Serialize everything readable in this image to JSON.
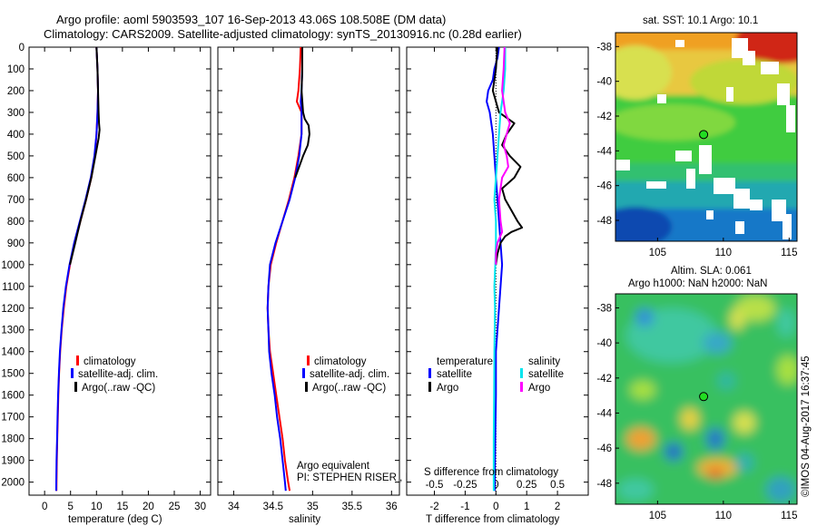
{
  "header": {
    "title_line1": "Argo profile: aoml 5903593_107 16-Sep-2013 43.06S 108.508E (DM data)",
    "title_line2": "Climatology: CARS2009. Satellite-adjusted climatology: synTS_20130916.nc (0.28d earlier)"
  },
  "watermark": "©IMOS 04-Aug-2017 16:37:45",
  "colors": {
    "climatology": "#ff0000",
    "satellite": "#0000ff",
    "argo": "#000000",
    "sat_salinity": "#00e5ee",
    "argo_salinity": "#ff00ff"
  },
  "depth_axis": {
    "ticks": [
      "0",
      "100",
      "200",
      "300",
      "400",
      "500",
      "600",
      "700",
      "800",
      "900",
      "1000",
      "1100",
      "1200",
      "1300",
      "1400",
      "1500",
      "1600",
      "1700",
      "1800",
      "1900",
      "2000"
    ],
    "ylim": [
      0,
      2060
    ]
  },
  "chart_data": [
    {
      "id": "temperature",
      "type": "line",
      "xlabel": "temperature (deg C)",
      "xlim": [
        -3,
        32
      ],
      "xticks": [
        "0",
        "5",
        "10",
        "15",
        "20",
        "25",
        "30"
      ],
      "xtick_values": [
        0,
        5,
        10,
        15,
        20,
        25,
        30
      ],
      "legend": [
        "climatology",
        "satellite-adj. clim.",
        "Argo(..raw -QC)"
      ],
      "series": [
        {
          "name": "climatology",
          "color": "#ff0000",
          "depth": [
            0,
            100,
            200,
            300,
            400,
            500,
            600,
            700,
            800,
            900,
            1000,
            1100,
            1200,
            1300,
            1400,
            1500,
            1600,
            1700,
            1800,
            1900,
            2000,
            2040
          ],
          "values": [
            10.0,
            10.2,
            10.3,
            10.2,
            10.0,
            9.7,
            9.0,
            8.0,
            6.9,
            5.8,
            4.9,
            4.2,
            3.7,
            3.3,
            3.0,
            2.8,
            2.65,
            2.55,
            2.45,
            2.35,
            2.3,
            2.28
          ]
        },
        {
          "name": "satellite-adj. clim.",
          "color": "#0000ff",
          "depth": [
            0,
            100,
            200,
            300,
            400,
            500,
            600,
            700,
            800,
            900,
            1000,
            1100,
            1200,
            1300,
            1400,
            1500,
            1600,
            1700,
            1800,
            1900,
            2000,
            2040
          ],
          "values": [
            10.0,
            10.2,
            10.3,
            10.2,
            10.0,
            9.6,
            8.9,
            7.9,
            6.8,
            5.7,
            4.8,
            4.1,
            3.6,
            3.25,
            2.95,
            2.75,
            2.6,
            2.5,
            2.4,
            2.3,
            2.25,
            2.24
          ]
        },
        {
          "name": "Argo",
          "color": "#000000",
          "depth": [
            0,
            100,
            200,
            300,
            350,
            380,
            420,
            500,
            600,
            700,
            800,
            850,
            900,
            950,
            1000
          ],
          "values": [
            10.0,
            10.2,
            10.3,
            10.4,
            10.5,
            10.6,
            10.4,
            9.8,
            9.0,
            8.0,
            6.9,
            6.4,
            5.9,
            5.4,
            4.9
          ]
        }
      ],
      "annotations": []
    },
    {
      "id": "salinity",
      "type": "line",
      "xlabel": "salinity",
      "xlim": [
        33.8,
        36.1
      ],
      "xticks": [
        "34",
        "34.5",
        "35",
        "35.5",
        "36"
      ],
      "xtick_values": [
        34,
        34.5,
        35,
        35.5,
        36
      ],
      "legend": [
        "climatology",
        "satellite-adj. clim.",
        "Argo(..raw -QC)"
      ],
      "series": [
        {
          "name": "climatology",
          "color": "#ff0000",
          "depth": [
            0,
            100,
            200,
            250,
            300,
            400,
            500,
            600,
            700,
            800,
            900,
            1000,
            1100,
            1200,
            1300,
            1400,
            1500,
            1600,
            1700,
            1800,
            1900,
            2000,
            2040
          ],
          "values": [
            34.85,
            34.84,
            34.82,
            34.8,
            34.86,
            34.86,
            34.82,
            34.77,
            34.7,
            34.62,
            34.54,
            34.47,
            34.44,
            34.43,
            34.44,
            34.46,
            34.5,
            34.54,
            34.58,
            34.62,
            34.65,
            34.69,
            34.71
          ]
        },
        {
          "name": "satellite-adj. clim.",
          "color": "#0000ff",
          "depth": [
            0,
            100,
            200,
            250,
            300,
            400,
            500,
            600,
            700,
            800,
            900,
            1000,
            1100,
            1200,
            1300,
            1400,
            1500,
            1600,
            1700,
            1800,
            1900,
            2000,
            2040
          ],
          "values": [
            34.87,
            34.87,
            34.86,
            34.85,
            34.86,
            34.86,
            34.83,
            34.78,
            34.71,
            34.62,
            34.53,
            34.46,
            34.44,
            34.43,
            34.44,
            34.45,
            34.48,
            34.52,
            34.55,
            34.59,
            34.62,
            34.65,
            34.66
          ]
        },
        {
          "name": "Argo",
          "color": "#000000",
          "depth": [
            0,
            100,
            200,
            300,
            330,
            360,
            400,
            450,
            500,
            560,
            600
          ],
          "values": [
            34.87,
            34.87,
            34.86,
            34.88,
            34.9,
            34.95,
            34.96,
            34.94,
            34.88,
            34.82,
            34.78
          ]
        }
      ],
      "annotations": [
        "Argo equivalent",
        "PI: STEPHEN RISER , KENNETH JOHNSON"
      ]
    },
    {
      "id": "difference",
      "type": "line",
      "xlabel": "T difference from climatology",
      "xlabel_top": "S difference from climatology",
      "xlim": [
        -2.9,
        3.0
      ],
      "xticks": [
        "-2",
        "-1",
        "0",
        "1",
        "2"
      ],
      "xtick_values": [
        -2,
        -1,
        0,
        1,
        2
      ],
      "xticks_top": [
        "-0.5",
        "-0.25",
        "0",
        "0.25",
        "0.5"
      ],
      "xtick_top_values": [
        -0.5,
        -0.25,
        0,
        0.25,
        0.5
      ],
      "legend": {
        "temperature": "temperature",
        "salinity": "salinity",
        "satellite": "satellite",
        "argo": "Argo"
      },
      "series": [
        {
          "name": "T satellite",
          "color": "#0000ff",
          "depth": [
            0,
            50,
            100,
            150,
            200,
            250,
            300,
            400,
            500,
            600,
            700,
            800,
            900,
            1000,
            1100,
            1200,
            1300,
            1400,
            1500,
            1600,
            1800,
            2040
          ],
          "values": [
            0.1,
            0.05,
            -0.05,
            -0.1,
            -0.25,
            -0.3,
            -0.2,
            -0.1,
            -0.05,
            0.0,
            0.05,
            0.1,
            0.15,
            0.2,
            0.15,
            0.1,
            0.05,
            0.0,
            0.0,
            0.0,
            -0.02,
            -0.04
          ]
        },
        {
          "name": "T Argo",
          "color": "#000000",
          "depth": [
            0,
            100,
            200,
            300,
            350,
            400,
            450,
            500,
            550,
            600,
            650,
            700,
            750,
            800,
            830,
            850,
            870,
            900,
            950,
            1000
          ],
          "values": [
            0.05,
            0.0,
            -0.1,
            0.1,
            0.6,
            0.35,
            0.2,
            0.45,
            0.8,
            0.6,
            0.2,
            0.3,
            0.5,
            0.7,
            0.85,
            0.5,
            0.3,
            0.15,
            0.05,
            0.0
          ]
        },
        {
          "name": "S satellite",
          "color": "#00e5ee",
          "depth": [
            0,
            100,
            200,
            300,
            400,
            500,
            600,
            700,
            800,
            900,
            1000,
            1100,
            1200,
            1400,
            1600,
            1800,
            2040
          ],
          "values": [
            0.3,
            0.3,
            0.25,
            0.15,
            0.1,
            0.05,
            0.0,
            -0.05,
            0.0,
            0.0,
            -0.02,
            -0.05,
            -0.03,
            -0.05,
            -0.06,
            -0.07,
            -0.07
          ]
        },
        {
          "name": "S Argo",
          "color": "#ff00ff",
          "depth": [
            0,
            100,
            200,
            300,
            350,
            400,
            450,
            500,
            550,
            600,
            700,
            800,
            850,
            900,
            950,
            1000
          ],
          "values": [
            0.28,
            0.25,
            0.2,
            0.3,
            0.45,
            0.35,
            0.25,
            0.35,
            0.4,
            0.2,
            0.1,
            0.15,
            0.2,
            0.05,
            0.0,
            0.0
          ]
        }
      ],
      "annotations": []
    },
    {
      "id": "sst_map",
      "type": "heatmap",
      "title": "sat. SST: 10.1  Argo: 10.1",
      "xticks": [
        "105",
        "110",
        "115"
      ],
      "xtick_values": [
        105,
        110,
        115
      ],
      "yticks": [
        "-38",
        "-40",
        "-42",
        "-44",
        "-46",
        "-48"
      ],
      "ytick_values": [
        -38,
        -40,
        -42,
        -44,
        -46,
        -48
      ],
      "xlim": [
        101.8,
        115.6
      ],
      "ylim": [
        -49.2,
        -37.2
      ],
      "float_position": {
        "lon": 108.5,
        "lat": -43.06
      }
    },
    {
      "id": "sla_map",
      "type": "heatmap",
      "title_line1": "Altim. SLA: 0.061",
      "title_line2": "Argo h1000: NaN h2000: NaN",
      "xticks": [
        "105",
        "110",
        "115"
      ],
      "xtick_values": [
        105,
        110,
        115
      ],
      "yticks": [
        "-38",
        "-40",
        "-42",
        "-44",
        "-46",
        "-48"
      ],
      "ytick_values": [
        -38,
        -40,
        -42,
        -44,
        -46,
        -48
      ],
      "xlim": [
        101.8,
        115.6
      ],
      "ylim": [
        -49.2,
        -37.2
      ],
      "float_position": {
        "lon": 108.5,
        "lat": -43.06
      }
    }
  ]
}
